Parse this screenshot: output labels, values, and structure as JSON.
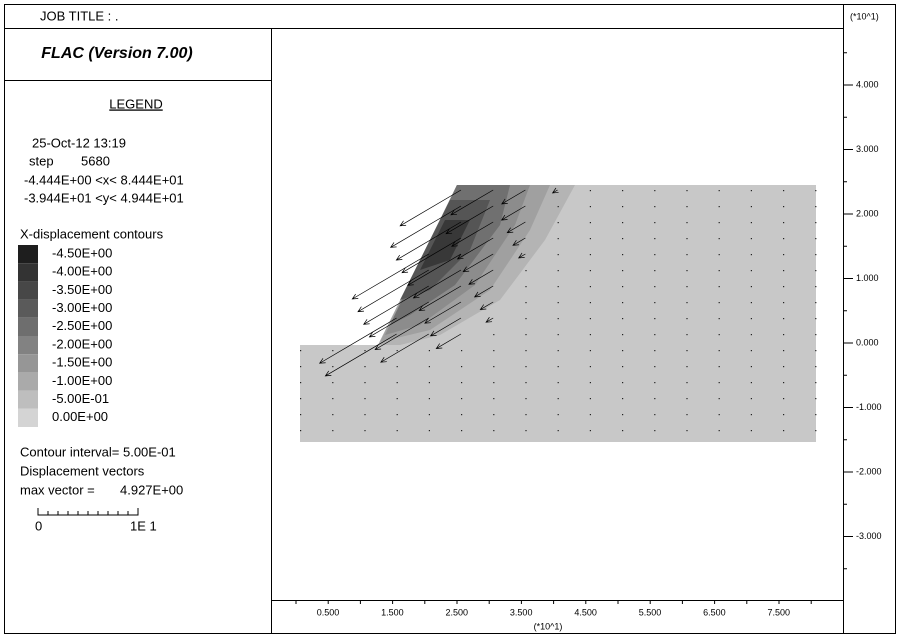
{
  "header": {
    "job_title": "JOB TITLE : .",
    "program": "FLAC (Version 7.00)",
    "scale_top": "(*10^1)"
  },
  "legend": {
    "title": "LEGEND",
    "date": "25-Oct-12  13:19",
    "step_label": "step",
    "step": "5680",
    "x_range": "-4.444E+00 <x<  8.444E+01",
    "y_range": "-3.944E+01 <y<  4.944E+01",
    "contour_title": "X-displacement contours",
    "contour_levels": [
      "-4.50E+00",
      "-4.00E+00",
      "-3.50E+00",
      "-3.00E+00",
      "-2.50E+00",
      "-2.00E+00",
      "-1.50E+00",
      "-1.00E+00",
      "-5.00E-01",
      "0.00E+00"
    ],
    "contour_interval": "Contour interval= 5.00E-01",
    "vectors_title": "Displacement vectors",
    "max_vector_label": "max vector =",
    "max_vector": "4.927E+00",
    "scale_start": "0",
    "scale_end": "1E  1"
  },
  "axes": {
    "x_ticks": [
      "0.500",
      "1.500",
      "2.500",
      "3.500",
      "4.500",
      "5.500",
      "6.500",
      "7.500"
    ],
    "x_unit": "(*10^1)",
    "y_ticks": [
      "4.000",
      "3.000",
      "2.000",
      "1.000",
      "0.000",
      "-1.000",
      "-2.000",
      "-3.000"
    ]
  }
}
